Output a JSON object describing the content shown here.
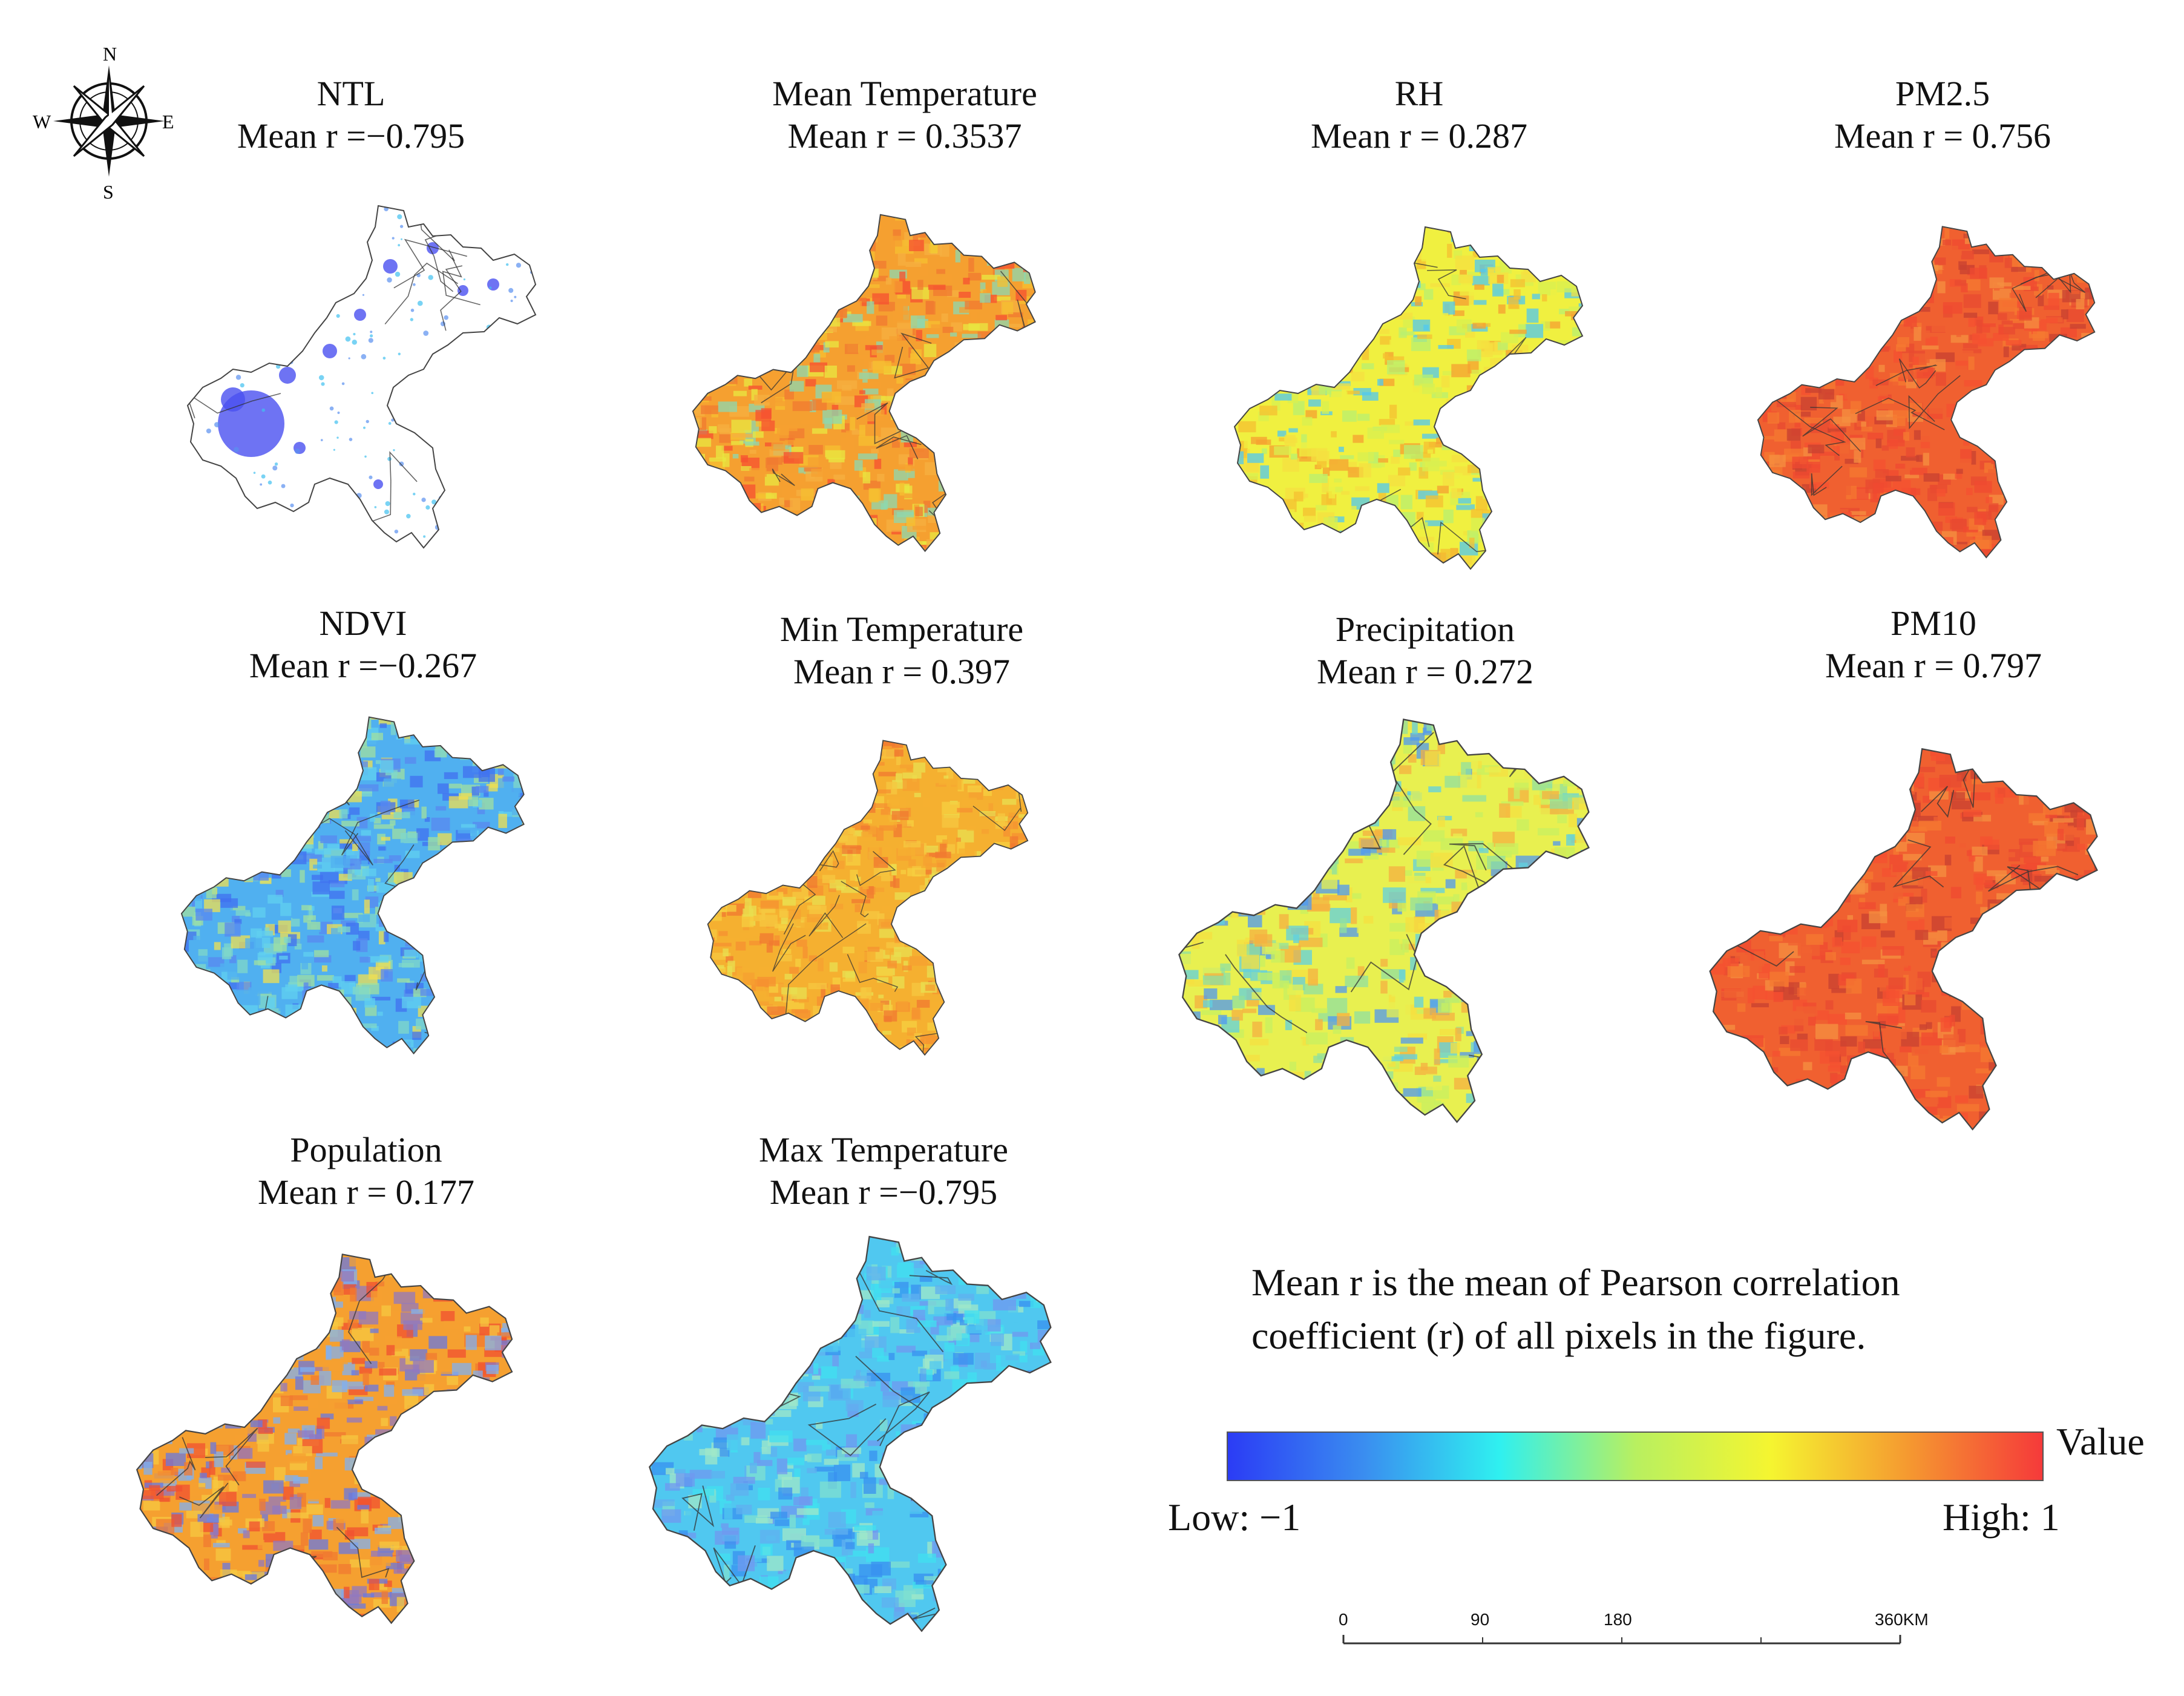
{
  "panels": [
    {
      "title": "NTL",
      "stat": "Mean r =−0.795",
      "palette": "ntl",
      "mean_r": -0.795
    },
    {
      "title": "Mean Temperature",
      "stat": "Mean r = 0.3537",
      "palette": "mix-warm",
      "mean_r": 0.3537
    },
    {
      "title": "RH",
      "stat": "Mean r = 0.287",
      "palette": "yellow",
      "mean_r": 0.287
    },
    {
      "title": "PM2.5",
      "stat": "Mean r = 0.756",
      "palette": "red",
      "mean_r": 0.756
    },
    {
      "title": "NDVI",
      "stat": "Mean r =−0.267",
      "palette": "cool",
      "mean_r": -0.267
    },
    {
      "title": "Min Temperature",
      "stat": "Mean r = 0.397",
      "palette": "orange",
      "mean_r": 0.397
    },
    {
      "title": "Precipitation",
      "stat": "Mean r = 0.272",
      "palette": "yellow-cool",
      "mean_r": 0.272
    },
    {
      "title": "PM10",
      "stat": "Mean r = 0.797",
      "palette": "red",
      "mean_r": 0.797
    },
    {
      "title": "Population",
      "stat": "Mean r = 0.177",
      "palette": "mixed",
      "mean_r": 0.177
    },
    {
      "title": "Max Temperature",
      "stat": "Mean r =−0.795",
      "palette": "cyan",
      "mean_r": -0.795
    }
  ],
  "note": {
    "line1": "Mean r is the mean of Pearson correlation",
    "line2": "coefficient (r) of all pixels in the figure."
  },
  "legend": {
    "title": "Value",
    "low_label": "Low: −1",
    "high_label": "High: 1",
    "colors": [
      "#2b3cf5",
      "#3a8df0",
      "#2ff0f0",
      "#b8f060",
      "#f5f530",
      "#f59a30",
      "#f53a3a"
    ]
  },
  "scale": {
    "ticks": [
      "0",
      "90",
      "180",
      "360"
    ],
    "unit": "KM"
  },
  "compass": {
    "n": "N",
    "s": "S",
    "e": "E",
    "w": "W"
  }
}
